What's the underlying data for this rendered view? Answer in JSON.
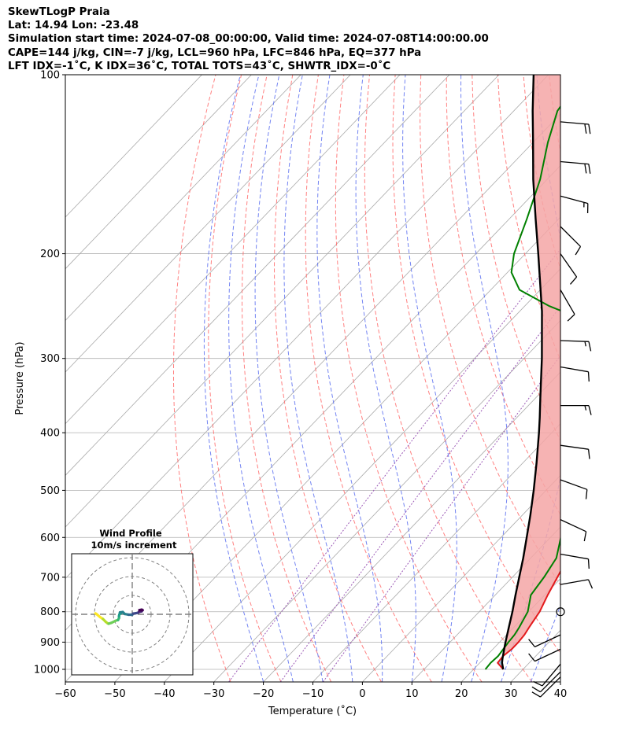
{
  "header": {
    "title": "SkewTLogP Praia",
    "location": "Lat: 14.94   Lon: -23.48",
    "times": "Simulation start time: 2024-07-08_00:00:00, Valid time: 2024-07-08T14:00:00.00",
    "params": "CAPE=144 j/kg, CIN=-7 j/kg, LCL=960 hPa, LFC=846 hPa, EQ=377 hPa",
    "indices": "LFT IDX=-1$^\\circ$C, K IDX=36$^\\circ$C, TOTAL TOTS=43$^\\circ$C, SHWTR_IDX=-0$^\\circ$C"
  },
  "header_display": {
    "indices": "LFT IDX=-1˚C, K IDX=36˚C, TOTAL TOTS=43˚C, SHWTR_IDX=-0˚C"
  },
  "chart_data": {
    "type": "line",
    "subtype": "skew-T log-P",
    "xlabel": "Temperature (˚C)",
    "ylabel": "Pressure (hPa)",
    "xlim": [
      -60,
      40
    ],
    "ylim": [
      1050,
      100
    ],
    "y_scale": "log",
    "x_ticks": [
      "−60",
      "−50",
      "−40",
      "−30",
      "−20",
      "−10",
      "0",
      "10",
      "20",
      "30",
      "40"
    ],
    "y_ticks": [
      "100",
      "200",
      "300",
      "400",
      "500",
      "600",
      "700",
      "800",
      "900",
      "1000"
    ],
    "grid": true,
    "colors": {
      "temperature": "#e31a1c",
      "dewpoint": "#008000",
      "parcel": "#000000",
      "cape_fill": "#8fbad9",
      "cin_fill": "#f4a6a6",
      "dry_adiabats": "#ff6b6b",
      "moist_adiabats": "#5b6ef0",
      "mixing_ratio": "#9b59b6",
      "isotherms": "#a9a9a9"
    },
    "series": [
      {
        "name": "",
        "role": "temperature",
        "points": [
          [
            1000,
            26.0
          ],
          [
            975,
            23.6
          ],
          [
            950,
            23.4
          ],
          [
            925,
            23.8
          ],
          [
            900,
            23.8
          ],
          [
            875,
            23.6
          ],
          [
            850,
            23.1
          ],
          [
            800,
            22.2
          ],
          [
            750,
            20.6
          ],
          [
            700,
            19.1
          ],
          [
            650,
            17.5
          ],
          [
            600,
            15.6
          ],
          [
            550,
            13.6
          ],
          [
            500,
            11.4
          ],
          [
            450,
            8.8
          ],
          [
            400,
            5.8
          ],
          [
            350,
            2.0
          ],
          [
            300,
            -2.4
          ],
          [
            275,
            -5.8
          ],
          [
            260,
            -8.4
          ],
          [
            250,
            -9.6
          ],
          [
            225,
            -14.6
          ],
          [
            200,
            -20.5
          ],
          [
            175,
            -27.0
          ],
          [
            150,
            -33.8
          ],
          [
            130,
            -39.0
          ],
          [
            115,
            -42.8
          ],
          [
            100,
            -46.0
          ]
        ]
      },
      {
        "name": "",
        "role": "dewpoint",
        "points": [
          [
            1000,
            22.4
          ],
          [
            975,
            22.2
          ],
          [
            950,
            22.4
          ],
          [
            925,
            22.1
          ],
          [
            900,
            21.8
          ],
          [
            875,
            21.6
          ],
          [
            850,
            21.1
          ],
          [
            800,
            19.8
          ],
          [
            750,
            17.2
          ],
          [
            700,
            16.4
          ],
          [
            650,
            15.2
          ],
          [
            600,
            12.1
          ],
          [
            550,
            9.1
          ],
          [
            500,
            5.9
          ],
          [
            450,
            2.1
          ],
          [
            420,
            -2.2
          ],
          [
            400,
            -3.8
          ],
          [
            380,
            -4.8
          ],
          [
            360,
            -3.3
          ],
          [
            340,
            -5.6
          ],
          [
            300,
            -10.4
          ],
          [
            280,
            -14.8
          ],
          [
            265,
            -20.8
          ],
          [
            245,
            -35.0
          ],
          [
            230,
            -44.2
          ],
          [
            215,
            -49.2
          ],
          [
            200,
            -52.3
          ],
          [
            175,
            -56.4
          ],
          [
            150,
            -61.4
          ],
          [
            130,
            -67.0
          ],
          [
            115,
            -71.2
          ],
          [
            100,
            -73.0
          ]
        ]
      },
      {
        "name": "",
        "role": "parcel",
        "points": [
          [
            1000,
            26.0
          ],
          [
            975,
            24.5
          ],
          [
            960,
            23.8
          ],
          [
            925,
            22.3
          ],
          [
            900,
            21.2
          ],
          [
            850,
            19.0
          ],
          [
            800,
            16.7
          ],
          [
            750,
            14.1
          ],
          [
            700,
            11.4
          ],
          [
            650,
            8.5
          ],
          [
            600,
            5.2
          ],
          [
            550,
            1.6
          ],
          [
            500,
            -2.5
          ],
          [
            450,
            -7.2
          ],
          [
            400,
            -12.6
          ],
          [
            377,
            -15.4
          ],
          [
            350,
            -19.0
          ],
          [
            300,
            -26.4
          ],
          [
            250,
            -35.5
          ],
          [
            200,
            -47.4
          ],
          [
            175,
            -54.6
          ],
          [
            150,
            -62.8
          ],
          [
            130,
            -70.0
          ],
          [
            115,
            -76.2
          ],
          [
            100,
            -83.0
          ]
        ]
      }
    ],
    "levels": {
      "LCL_hPa": 960,
      "LFC_hPa": 846,
      "EQ_hPa": 377
    },
    "wind_barbs": [
      {
        "p": 120,
        "speed_kt": 20,
        "dir_deg": 95
      },
      {
        "p": 140,
        "speed_kt": 20,
        "dir_deg": 95
      },
      {
        "p": 160,
        "speed_kt": 15,
        "dir_deg": 105
      },
      {
        "p": 180,
        "speed_kt": 10,
        "dir_deg": 135
      },
      {
        "p": 200,
        "speed_kt": 10,
        "dir_deg": 145
      },
      {
        "p": 230,
        "speed_kt": 10,
        "dir_deg": 150
      },
      {
        "p": 280,
        "speed_kt": 15,
        "dir_deg": 92
      },
      {
        "p": 310,
        "speed_kt": 10,
        "dir_deg": 100
      },
      {
        "p": 360,
        "speed_kt": 15,
        "dir_deg": 90
      },
      {
        "p": 420,
        "speed_kt": 10,
        "dir_deg": 98
      },
      {
        "p": 480,
        "speed_kt": 10,
        "dir_deg": 110
      },
      {
        "p": 560,
        "speed_kt": 10,
        "dir_deg": 115
      },
      {
        "p": 640,
        "speed_kt": 10,
        "dir_deg": 100
      },
      {
        "p": 720,
        "speed_kt": 10,
        "dir_deg": 80
      },
      {
        "p": 800,
        "speed_kt": 0,
        "dir_deg": 0
      },
      {
        "p": 875,
        "speed_kt": 10,
        "dir_deg": 245
      },
      {
        "p": 925,
        "speed_kt": 10,
        "dir_deg": 245
      },
      {
        "p": 980,
        "speed_kt": 10,
        "dir_deg": 220
      },
      {
        "p": 1010,
        "speed_kt": 10,
        "dir_deg": 225
      },
      {
        "p": 1030,
        "speed_kt": 10,
        "dir_deg": 225
      }
    ],
    "hodograph": {
      "title": "Wind Profile",
      "subtitle": "10m/s increment",
      "ring_step_ms": 10,
      "rings": 3,
      "colormap": "viridis",
      "points_uv": [
        [
          -19.5,
          0.5
        ],
        [
          -19.0,
          0.2
        ],
        [
          -17.0,
          -1.5
        ],
        [
          -15.5,
          -2.5
        ],
        [
          -14.0,
          -4.0
        ],
        [
          -13.0,
          -4.8
        ],
        [
          -12.5,
          -5.0
        ],
        [
          -11.0,
          -4.5
        ],
        [
          -9.0,
          -3.5
        ],
        [
          -7.5,
          -3.0
        ],
        [
          -7.0,
          -2.0
        ],
        [
          -7.0,
          -1.0
        ],
        [
          -6.8,
          0.0
        ],
        [
          -6.0,
          0.5
        ],
        [
          -6.5,
          1.0
        ],
        [
          -5.0,
          1.2
        ],
        [
          -4.0,
          0.2
        ],
        [
          -2.0,
          -0.2
        ],
        [
          0.0,
          -0.2
        ],
        [
          0.5,
          0.4
        ],
        [
          1.5,
          0.5
        ],
        [
          3.0,
          0.8
        ],
        [
          3.5,
          1.2
        ],
        [
          5.0,
          1.6
        ],
        [
          4.0,
          1.8
        ],
        [
          5.5,
          2.2
        ],
        [
          3.8,
          2.2
        ],
        [
          5.0,
          2.5
        ]
      ]
    }
  }
}
